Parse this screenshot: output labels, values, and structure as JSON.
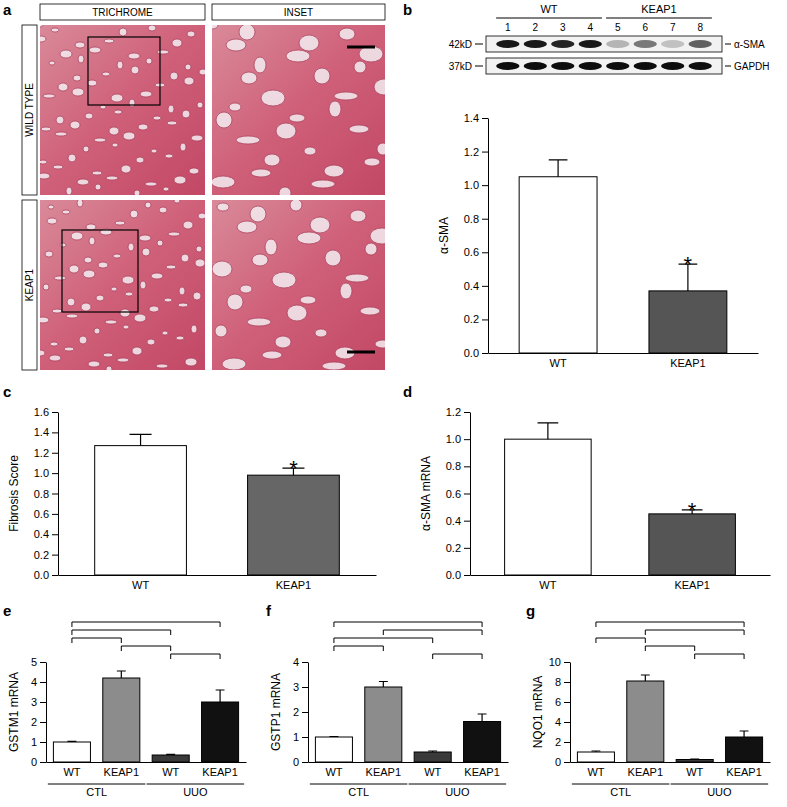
{
  "panel_labels": [
    "a",
    "b",
    "c",
    "d",
    "e",
    "f",
    "g"
  ],
  "micrograph": {
    "stain_header": "TRICHROME",
    "inset_header": "INSET",
    "row_headers": [
      "WILD TYPE",
      "KEAP1"
    ]
  },
  "blot": {
    "groups": [
      {
        "label": "WT",
        "lanes": [
          "1",
          "2",
          "3",
          "4"
        ]
      },
      {
        "label": "KEAP1",
        "lanes": [
          "5",
          "6",
          "7",
          "8"
        ]
      }
    ],
    "rows": [
      {
        "size": "42kD",
        "protein": "α-SMA",
        "band_intensity": [
          0.9,
          0.9,
          0.85,
          0.9,
          0.25,
          0.5,
          0.2,
          0.6
        ]
      },
      {
        "size": "37kD",
        "protein": "GAPDH",
        "band_intensity": [
          0.95,
          0.95,
          0.95,
          0.95,
          0.95,
          0.95,
          0.95,
          0.95
        ]
      }
    ]
  },
  "chart_data": [
    {
      "type": "bar",
      "y_label": "α-SMA",
      "categories": [
        "WT",
        "KEAP1"
      ],
      "values": [
        1.05,
        0.37
      ],
      "errors": [
        0.1,
        0.16
      ],
      "significance": [
        null,
        "*"
      ],
      "colors": [
        "#ffffff",
        "#555555"
      ],
      "ylim": [
        0,
        1.4
      ],
      "yticks": [
        {
          "value": 0,
          "label": "0.0"
        },
        0.2,
        0.4,
        0.6,
        0.8,
        {
          "value": 1,
          "label": "1.0"
        },
        1.2,
        1.4
      ]
    },
    {
      "type": "bar",
      "y_label": "Fibrosis Score",
      "categories": [
        "WT",
        "KEAP1"
      ],
      "values": [
        1.27,
        0.98
      ],
      "errors": [
        0.11,
        0.07
      ],
      "significance": [
        null,
        "*"
      ],
      "colors": [
        "#ffffff",
        "#666666"
      ],
      "ylim": [
        0,
        1.6
      ],
      "yticks": [
        {
          "value": 0,
          "label": "0.0"
        },
        0.2,
        0.4,
        0.6,
        0.8,
        {
          "value": 1,
          "label": "1.0"
        },
        1.2,
        1.4,
        1.6
      ]
    },
    {
      "type": "bar",
      "y_label": "α-SMA mRNA",
      "categories": [
        "WT",
        "KEAP1"
      ],
      "values": [
        1.0,
        0.45
      ],
      "errors": [
        0.12,
        0.03
      ],
      "significance": [
        null,
        "*"
      ],
      "colors": [
        "#ffffff",
        "#555555"
      ],
      "ylim": [
        0,
        1.2
      ],
      "yticks": [
        {
          "value": 0,
          "label": "0.0"
        },
        0.2,
        0.4,
        0.6,
        0.8,
        {
          "value": 1,
          "label": "1.0"
        },
        1.2
      ]
    },
    {
      "type": "bar",
      "y_label": "GSTM1 mRNA",
      "categories": [
        "WT",
        "KEAP1",
        "WT",
        "KEAP1"
      ],
      "values": [
        1.0,
        4.2,
        0.35,
        3.0
      ],
      "errors": [
        0.03,
        0.35,
        0.03,
        0.6
      ],
      "colors": [
        "#ffffff",
        "#8c8c8c",
        "#3a3a3a",
        "#111111"
      ],
      "groups": [
        {
          "label": "CTL",
          "categories": [
            0,
            1
          ]
        },
        {
          "label": "UUO",
          "categories": [
            2,
            3
          ]
        }
      ],
      "brackets": [
        [
          0,
          3
        ],
        [
          0,
          2
        ],
        [
          0,
          1
        ],
        [
          1,
          2
        ],
        [
          2,
          3
        ]
      ],
      "ylim": [
        0,
        5
      ],
      "yticks": [
        0,
        1,
        2,
        3,
        4,
        5
      ]
    },
    {
      "type": "bar",
      "y_label": "GSTP1 mRNA",
      "categories": [
        "WT",
        "KEAP1",
        "WT",
        "KEAP1"
      ],
      "values": [
        1.0,
        3.0,
        0.4,
        1.62
      ],
      "errors": [
        0.02,
        0.22,
        0.04,
        0.3
      ],
      "colors": [
        "#ffffff",
        "#8c8c8c",
        "#3a3a3a",
        "#111111"
      ],
      "groups": [
        {
          "label": "CTL",
          "categories": [
            0,
            1
          ]
        },
        {
          "label": "UUO",
          "categories": [
            2,
            3
          ]
        }
      ],
      "brackets": [
        [
          0,
          3
        ],
        [
          1,
          3
        ],
        [
          0,
          2
        ],
        [
          0,
          1
        ],
        [
          2,
          3
        ]
      ],
      "ylim": [
        0,
        4
      ],
      "yticks": [
        0,
        1,
        2,
        3,
        4
      ]
    },
    {
      "type": "bar",
      "y_label": "NQO1 mRNA",
      "categories": [
        "WT",
        "KEAP1",
        "WT",
        "KEAP1"
      ],
      "values": [
        1.0,
        8.1,
        0.25,
        2.5
      ],
      "errors": [
        0.1,
        0.6,
        0.05,
        0.6
      ],
      "colors": [
        "#ffffff",
        "#8c8c8c",
        "#3a3a3a",
        "#111111"
      ],
      "groups": [
        {
          "label": "CTL",
          "categories": [
            0,
            1
          ]
        },
        {
          "label": "UUO",
          "categories": [
            2,
            3
          ]
        }
      ],
      "brackets": [
        [
          0,
          3
        ],
        [
          1,
          3
        ],
        [
          0,
          1
        ],
        [
          1,
          2
        ],
        [
          2,
          3
        ]
      ],
      "ylim": [
        0,
        10
      ],
      "yticks": [
        0,
        2,
        4,
        6,
        8,
        10
      ]
    }
  ]
}
